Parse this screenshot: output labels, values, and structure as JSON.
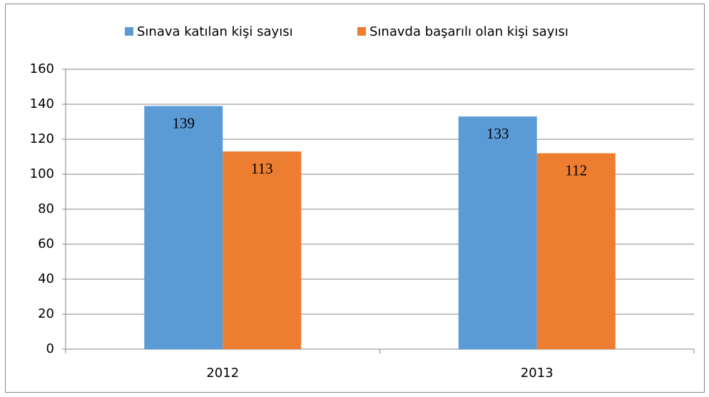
{
  "chart_data": {
    "type": "bar",
    "categories": [
      "2012",
      "2013"
    ],
    "series": [
      {
        "name": "Sınava katılan kişi sayısı",
        "color": "#5b9bd5",
        "values": [
          139,
          133
        ]
      },
      {
        "name": "Sınavda başarılı olan kişi sayısı",
        "color": "#ed7d31",
        "values": [
          113,
          112
        ]
      }
    ],
    "ylim": [
      0,
      160
    ],
    "yticks": [
      0,
      20,
      40,
      60,
      80,
      100,
      120,
      140,
      160
    ],
    "grid": true,
    "legend": "top"
  }
}
